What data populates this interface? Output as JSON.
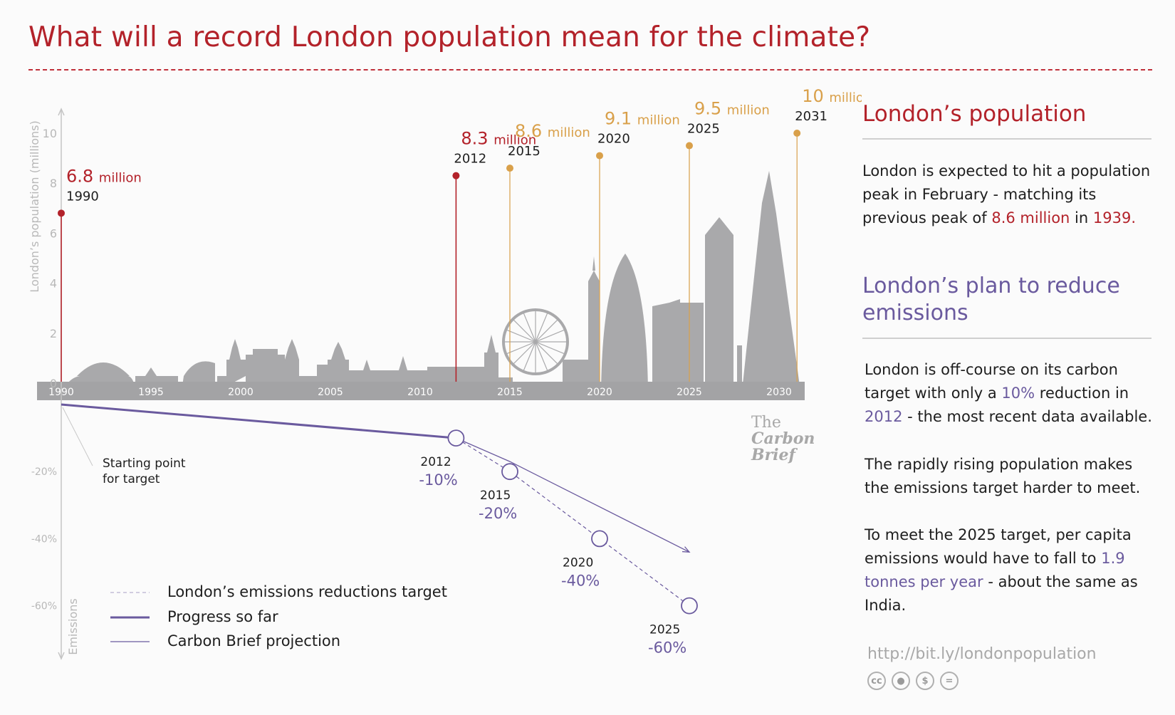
{
  "title": "What will a record London population mean for the climate?",
  "sidebar": {
    "population_heading": "London’s population",
    "population_text_a": "London is expected to hit a population peak in February - matching its previous peak of ",
    "population_text_value": "8.6 million",
    "population_text_mid": " in ",
    "population_text_year": "1939.",
    "emissions_heading": "London’s plan to reduce emissions",
    "em_p1_a": "London is off-course on its carbon target with only a ",
    "em_p1_value": "10%",
    "em_p1_mid": " reduction in ",
    "em_p1_year": "2012",
    "em_p1_b": " - the most recent data available.",
    "em_p2": "The rapidly rising population makes the emissions target harder to meet.",
    "em_p3_a": "To meet the 2025 target, per capita emissions would have to fall to ",
    "em_p3_value": "1.9 tonnes per year",
    "em_p3_b": " - about the same as India.",
    "url": "http://bit.ly/londonpopulation",
    "license_icons": [
      "cc-icon",
      "attribution-icon",
      "noncommercial-icon",
      "noderivatives-icon"
    ]
  },
  "brand": {
    "line1": "The",
    "line2": "Carbon",
    "line3": "Brief"
  },
  "colors": {
    "red": "#b3222a",
    "orange": "#d9a04a",
    "purple": "#6a5a9e",
    "skyline": "#a9a9ab",
    "axis_band": "#a3a3a5"
  },
  "chart_data": [
    {
      "type": "scatter",
      "ylabel": "London’s population (millions)",
      "ylim": [
        0,
        11
      ],
      "y_ticks": [
        0,
        2,
        4,
        6,
        8,
        10
      ],
      "x_ticks": [
        "1990",
        "1995",
        "2000",
        "2005",
        "2010",
        "2015",
        "2020",
        "2025",
        "2030"
      ],
      "unit_label": "million",
      "points": [
        {
          "year": 1990,
          "year_label": "1990",
          "value_label": "6.8",
          "value": 6.8,
          "kind": "actual"
        },
        {
          "year": 2012,
          "year_label": "2012",
          "value_label": "8.3",
          "value": 8.3,
          "kind": "actual"
        },
        {
          "year": 2015,
          "year_label": "2015",
          "value_label": "8.6",
          "value": 8.6,
          "kind": "projected"
        },
        {
          "year": 2020,
          "year_label": "2020",
          "value_label": "9.1",
          "value": 9.1,
          "kind": "projected"
        },
        {
          "year": 2025,
          "year_label": "2025",
          "value_label": "9.5",
          "value": 9.5,
          "kind": "projected"
        },
        {
          "year": 2031,
          "year_label": "2031",
          "value_label": "10",
          "value": 10,
          "kind": "projected"
        }
      ]
    },
    {
      "type": "line",
      "ylabel": "Emissions",
      "ylim": [
        -70,
        0
      ],
      "y_ticks": [
        -20,
        -40,
        -60
      ],
      "y_tick_labels": [
        "-20%",
        "-40%",
        "-60%"
      ],
      "start_annotation": [
        "Starting point",
        "for target"
      ],
      "series": [
        {
          "name": "London’s emissions reductions target",
          "style": "dashed",
          "points": [
            [
              1990,
              0
            ],
            [
              2012,
              -10
            ],
            [
              2015,
              -20
            ],
            [
              2020,
              -40
            ],
            [
              2025,
              -60
            ]
          ]
        },
        {
          "name": "Progress so far",
          "style": "thick",
          "points": [
            [
              1990,
              0
            ],
            [
              2012,
              -10
            ]
          ]
        },
        {
          "name": "Carbon Brief projection",
          "style": "thin",
          "points": [
            [
              2012,
              -10
            ],
            [
              2015,
              -17
            ],
            [
              2025,
              -44
            ]
          ]
        }
      ],
      "targets": [
        {
          "year": 2012,
          "year_label": "2012",
          "label": "-10%",
          "value": -10
        },
        {
          "year": 2015,
          "year_label": "2015",
          "label": "-20%",
          "value": -20
        },
        {
          "year": 2020,
          "year_label": "2020",
          "label": "-40%",
          "value": -40
        },
        {
          "year": 2025,
          "year_label": "2025",
          "label": "-60%",
          "value": -60
        }
      ]
    }
  ]
}
